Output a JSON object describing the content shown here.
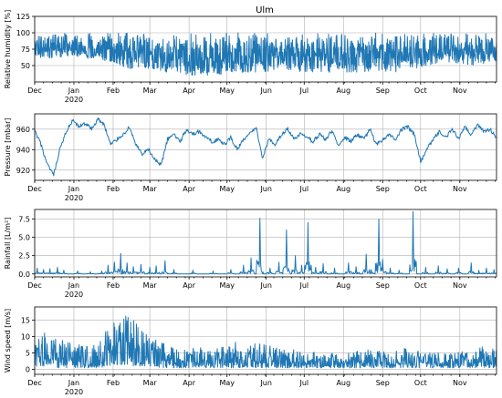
{
  "figure_title": "Ulm",
  "line_color": "#1f77b4",
  "grid": true,
  "chart_data": [
    {
      "type": "line",
      "ylabel": "Relative humidity [%]",
      "ylim": [
        25,
        125
      ],
      "yticks": [
        50,
        75,
        100,
        125
      ],
      "xlim": [
        "2019-12-01",
        "2020-11-30"
      ],
      "xticks": [
        {
          "date": "2019-12-01",
          "label": "Dec"
        },
        {
          "date": "2020-01-01",
          "label": "Jan",
          "sublabel": "2020"
        },
        {
          "date": "2020-02-01",
          "label": "Feb"
        },
        {
          "date": "2020-03-01",
          "label": "Mar"
        },
        {
          "date": "2020-04-01",
          "label": "Apr"
        },
        {
          "date": "2020-05-01",
          "label": "May"
        },
        {
          "date": "2020-06-01",
          "label": "Jun"
        },
        {
          "date": "2020-07-01",
          "label": "Jul"
        },
        {
          "date": "2020-08-01",
          "label": "Aug"
        },
        {
          "date": "2020-09-01",
          "label": "Sep"
        },
        {
          "date": "2020-10-01",
          "label": "Oct"
        },
        {
          "date": "2020-11-01",
          "label": "Nov"
        }
      ],
      "x": [
        "2019-12-01",
        "2019-12-16",
        "2019-12-31",
        "2020-01-15",
        "2020-01-30",
        "2020-02-14",
        "2020-02-29",
        "2020-03-15",
        "2020-03-30",
        "2020-04-14",
        "2020-04-29",
        "2020-05-14",
        "2020-05-29",
        "2020-06-13",
        "2020-06-28",
        "2020-07-13",
        "2020-07-28",
        "2020-08-12",
        "2020-08-27",
        "2020-09-11",
        "2020-09-26",
        "2020-10-11",
        "2020-10-26",
        "2020-11-10",
        "2020-11-25"
      ],
      "series": [
        {
          "y_min": [
            60,
            62,
            65,
            60,
            55,
            45,
            45,
            40,
            35,
            35,
            35,
            40,
            40,
            45,
            40,
            40,
            40,
            40,
            40,
            40,
            45,
            50,
            55,
            50,
            55
          ],
          "y_max": [
            100,
            100,
            100,
            100,
            100,
            100,
            100,
            100,
            100,
            100,
            100,
            100,
            100,
            100,
            100,
            100,
            100,
            100,
            100,
            100,
            100,
            100,
            100,
            100,
            100
          ]
        }
      ]
    },
    {
      "type": "line",
      "ylabel": "Pressure [mbar]",
      "ylim": [
        910,
        975
      ],
      "yticks": [
        920,
        940,
        960
      ],
      "xlim": [
        "2019-12-01",
        "2020-11-30"
      ],
      "xticks": [
        {
          "date": "2019-12-01",
          "label": "Dec"
        },
        {
          "date": "2020-01-01",
          "label": "Jan",
          "sublabel": "2020"
        },
        {
          "date": "2020-02-01",
          "label": "Feb"
        },
        {
          "date": "2020-03-01",
          "label": "Mar"
        },
        {
          "date": "2020-04-01",
          "label": "Apr"
        },
        {
          "date": "2020-05-01",
          "label": "May"
        },
        {
          "date": "2020-06-01",
          "label": "Jun"
        },
        {
          "date": "2020-07-01",
          "label": "Jul"
        },
        {
          "date": "2020-08-01",
          "label": "Aug"
        },
        {
          "date": "2020-09-01",
          "label": "Sep"
        },
        {
          "date": "2020-10-01",
          "label": "Oct"
        },
        {
          "date": "2020-11-01",
          "label": "Nov"
        }
      ],
      "x": [
        "2019-12-01",
        "2019-12-06",
        "2019-12-11",
        "2019-12-16",
        "2019-12-21",
        "2019-12-26",
        "2019-12-31",
        "2020-01-05",
        "2020-01-10",
        "2020-01-15",
        "2020-01-20",
        "2020-01-25",
        "2020-01-30",
        "2020-02-04",
        "2020-02-09",
        "2020-02-14",
        "2020-02-19",
        "2020-02-24",
        "2020-02-29",
        "2020-03-05",
        "2020-03-10",
        "2020-03-15",
        "2020-03-20",
        "2020-03-25",
        "2020-03-30",
        "2020-04-04",
        "2020-04-09",
        "2020-04-14",
        "2020-04-19",
        "2020-04-24",
        "2020-04-29",
        "2020-05-04",
        "2020-05-09",
        "2020-05-14",
        "2020-05-19",
        "2020-05-24",
        "2020-05-29",
        "2020-06-03",
        "2020-06-08",
        "2020-06-13",
        "2020-06-18",
        "2020-06-23",
        "2020-06-28",
        "2020-07-03",
        "2020-07-08",
        "2020-07-13",
        "2020-07-18",
        "2020-07-23",
        "2020-07-28",
        "2020-08-02",
        "2020-08-07",
        "2020-08-12",
        "2020-08-17",
        "2020-08-22",
        "2020-08-27",
        "2020-09-01",
        "2020-09-06",
        "2020-09-11",
        "2020-09-16",
        "2020-09-21",
        "2020-09-26",
        "2020-10-01",
        "2020-10-06",
        "2020-10-11",
        "2020-10-16",
        "2020-10-21",
        "2020-10-26",
        "2020-10-31",
        "2020-11-05",
        "2020-11-10",
        "2020-11-15",
        "2020-11-20",
        "2020-11-25",
        "2020-11-30"
      ],
      "series": [
        {
          "values": [
            958,
            945,
            925,
            915,
            940,
            958,
            968,
            962,
            966,
            960,
            970,
            964,
            945,
            950,
            955,
            962,
            945,
            935,
            940,
            930,
            925,
            950,
            955,
            948,
            960,
            955,
            958,
            952,
            948,
            950,
            945,
            952,
            940,
            950,
            955,
            962,
            932,
            950,
            945,
            955,
            960,
            950,
            955,
            952,
            948,
            955,
            950,
            958,
            945,
            952,
            948,
            955,
            950,
            960,
            945,
            950,
            955,
            950,
            960,
            962,
            955,
            928,
            940,
            950,
            958,
            952,
            960,
            950,
            962,
            955,
            965,
            958,
            960,
            952
          ]
        }
      ]
    },
    {
      "type": "line",
      "ylabel": "Rainfall [L/m²]",
      "ylim": [
        -0.4,
        8.8
      ],
      "yticks": [
        0.0,
        2.5,
        5.0,
        7.5
      ],
      "ytick_labels": [
        "0.0",
        "2.5",
        "5.0",
        "7.5"
      ],
      "xlim": [
        "2019-12-01",
        "2020-11-30"
      ],
      "xticks": [
        {
          "date": "2019-12-01",
          "label": "Dec"
        },
        {
          "date": "2020-01-01",
          "label": "Jan",
          "sublabel": "2020"
        },
        {
          "date": "2020-02-01",
          "label": "Feb"
        },
        {
          "date": "2020-03-01",
          "label": "Mar"
        },
        {
          "date": "2020-04-01",
          "label": "Apr"
        },
        {
          "date": "2020-05-01",
          "label": "May"
        },
        {
          "date": "2020-06-01",
          "label": "Jun"
        },
        {
          "date": "2020-07-01",
          "label": "Jul"
        },
        {
          "date": "2020-08-01",
          "label": "Aug"
        },
        {
          "date": "2020-09-01",
          "label": "Sep"
        },
        {
          "date": "2020-10-01",
          "label": "Oct"
        },
        {
          "date": "2020-11-01",
          "label": "Nov"
        }
      ],
      "series": [
        {
          "spikes": [
            [
              "2019-12-03",
              0.8
            ],
            [
              "2019-12-08",
              0.6
            ],
            [
              "2019-12-13",
              0.7
            ],
            [
              "2019-12-19",
              0.9
            ],
            [
              "2019-12-24",
              0.5
            ],
            [
              "2020-01-04",
              0.4
            ],
            [
              "2020-01-14",
              0.3
            ],
            [
              "2020-01-23",
              0.4
            ],
            [
              "2020-01-28",
              1.2
            ],
            [
              "2020-02-02",
              1.6
            ],
            [
              "2020-02-07",
              2.8
            ],
            [
              "2020-02-12",
              1.5
            ],
            [
              "2020-02-17",
              1.0
            ],
            [
              "2020-02-23",
              1.3
            ],
            [
              "2020-03-01",
              0.9
            ],
            [
              "2020-03-06",
              1.1
            ],
            [
              "2020-03-13",
              1.8
            ],
            [
              "2020-03-20",
              0.6
            ],
            [
              "2020-04-04",
              0.5
            ],
            [
              "2020-04-20",
              0.4
            ],
            [
              "2020-05-04",
              0.6
            ],
            [
              "2020-05-14",
              1.2
            ],
            [
              "2020-05-20",
              2.2
            ],
            [
              "2020-05-27",
              7.6
            ],
            [
              "2020-06-04",
              0.8
            ],
            [
              "2020-06-11",
              1.6
            ],
            [
              "2020-06-17",
              6.0
            ],
            [
              "2020-06-24",
              2.5
            ],
            [
              "2020-06-29",
              1.2
            ],
            [
              "2020-07-04",
              7.0
            ],
            [
              "2020-07-10",
              0.9
            ],
            [
              "2020-07-16",
              1.4
            ],
            [
              "2020-07-25",
              0.8
            ],
            [
              "2020-08-05",
              1.5
            ],
            [
              "2020-08-11",
              1.0
            ],
            [
              "2020-08-19",
              2.7
            ],
            [
              "2020-08-23",
              0.6
            ],
            [
              "2020-08-29",
              7.5
            ],
            [
              "2020-09-01",
              2.0
            ],
            [
              "2020-09-07",
              0.8
            ],
            [
              "2020-09-14",
              0.5
            ],
            [
              "2020-09-25",
              8.5
            ],
            [
              "2020-10-05",
              0.9
            ],
            [
              "2020-10-15",
              1.1
            ],
            [
              "2020-10-22",
              0.7
            ],
            [
              "2020-10-31",
              0.8
            ],
            [
              "2020-11-10",
              1.5
            ],
            [
              "2020-11-16",
              0.5
            ],
            [
              "2020-11-22",
              0.8
            ],
            [
              "2020-11-28",
              0.6
            ]
          ]
        }
      ]
    },
    {
      "type": "line",
      "ylabel": "Wind speed [m/s]",
      "ylim": [
        -1.5,
        19
      ],
      "yticks": [
        0,
        5,
        10,
        15
      ],
      "xlim": [
        "2019-12-01",
        "2020-11-30"
      ],
      "xticks": [
        {
          "date": "2019-12-01",
          "label": "Dec"
        },
        {
          "date": "2020-01-01",
          "label": "Jan",
          "sublabel": "2020"
        },
        {
          "date": "2020-02-01",
          "label": "Feb"
        },
        {
          "date": "2020-03-01",
          "label": "Mar"
        },
        {
          "date": "2020-04-01",
          "label": "Apr"
        },
        {
          "date": "2020-05-01",
          "label": "May"
        },
        {
          "date": "2020-06-01",
          "label": "Jun"
        },
        {
          "date": "2020-07-01",
          "label": "Jul"
        },
        {
          "date": "2020-08-01",
          "label": "Aug"
        },
        {
          "date": "2020-09-01",
          "label": "Sep"
        },
        {
          "date": "2020-10-01",
          "label": "Oct"
        },
        {
          "date": "2020-11-01",
          "label": "Nov"
        }
      ],
      "x": [
        "2019-12-01",
        "2019-12-11",
        "2019-12-21",
        "2019-12-31",
        "2020-01-10",
        "2020-01-20",
        "2020-01-30",
        "2020-02-09",
        "2020-02-19",
        "2020-02-29",
        "2020-03-10",
        "2020-03-20",
        "2020-03-30",
        "2020-04-09",
        "2020-04-19",
        "2020-04-29",
        "2020-05-09",
        "2020-05-19",
        "2020-05-29",
        "2020-06-08",
        "2020-06-18",
        "2020-06-28",
        "2020-07-08",
        "2020-07-18",
        "2020-07-28",
        "2020-08-07",
        "2020-08-17",
        "2020-08-27",
        "2020-09-06",
        "2020-09-16",
        "2020-09-26",
        "2020-10-06",
        "2020-10-16",
        "2020-10-26",
        "2020-11-05",
        "2020-11-15",
        "2020-11-25",
        "2020-11-30"
      ],
      "series": [
        {
          "y_min": [
            1,
            1,
            0.5,
            0.5,
            0.5,
            0.5,
            1,
            1.5,
            1,
            1,
            0.5,
            0.5,
            0.5,
            0.5,
            0.5,
            0.5,
            0.5,
            0.5,
            0.5,
            0.5,
            0.5,
            0.5,
            0.5,
            0.5,
            0.5,
            0.5,
            0.5,
            0.5,
            0.5,
            0.5,
            0.5,
            0.5,
            0.5,
            0.5,
            0.5,
            0.5,
            0.5,
            0.5
          ],
          "y_max": [
            8,
            12,
            9,
            8,
            7,
            8,
            14,
            17,
            15,
            10,
            9,
            7,
            6,
            7,
            6,
            7,
            9,
            8,
            8,
            7,
            6,
            6,
            6,
            5,
            5,
            5,
            6,
            6,
            5,
            7,
            6,
            5,
            5,
            5,
            6,
            7,
            7,
            6
          ]
        }
      ]
    }
  ]
}
